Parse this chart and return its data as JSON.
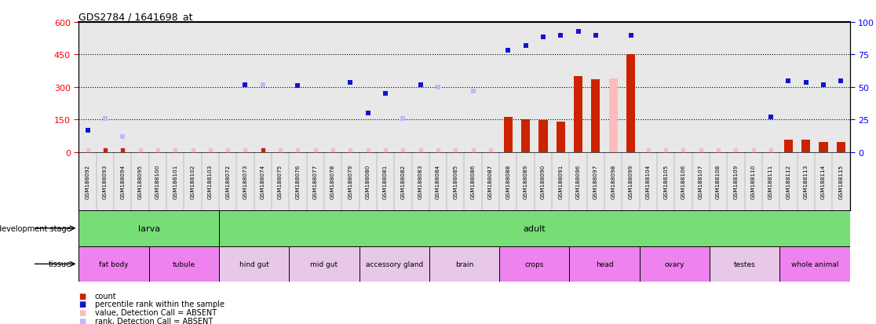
{
  "title": "GDS2784 / 1641698_at",
  "samples": [
    "GSM188092",
    "GSM188093",
    "GSM188094",
    "GSM188095",
    "GSM188100",
    "GSM188101",
    "GSM188102",
    "GSM188103",
    "GSM188072",
    "GSM188073",
    "GSM188074",
    "GSM188075",
    "GSM188076",
    "GSM188077",
    "GSM188078",
    "GSM188079",
    "GSM188080",
    "GSM188081",
    "GSM188082",
    "GSM188083",
    "GSM188084",
    "GSM188085",
    "GSM188086",
    "GSM188087",
    "GSM188088",
    "GSM188089",
    "GSM188090",
    "GSM188091",
    "GSM188096",
    "GSM188097",
    "GSM188098",
    "GSM188099",
    "GSM188104",
    "GSM188105",
    "GSM188106",
    "GSM188107",
    "GSM188108",
    "GSM188109",
    "GSM188110",
    "GSM188111",
    "GSM188112",
    "GSM188113",
    "GSM188114",
    "GSM188115"
  ],
  "count": [
    5,
    5,
    5,
    5,
    5,
    5,
    5,
    5,
    5,
    5,
    5,
    5,
    5,
    5,
    5,
    5,
    5,
    5,
    5,
    5,
    5,
    5,
    5,
    5,
    162,
    152,
    147,
    140,
    350,
    335,
    340,
    450,
    5,
    5,
    5,
    5,
    5,
    5,
    5,
    5,
    55,
    55,
    45,
    45
  ],
  "value_absent": [
    true,
    false,
    false,
    true,
    true,
    true,
    true,
    true,
    true,
    true,
    false,
    true,
    true,
    true,
    true,
    true,
    true,
    true,
    true,
    true,
    true,
    true,
    true,
    true,
    false,
    false,
    false,
    false,
    false,
    false,
    true,
    false,
    true,
    true,
    true,
    true,
    true,
    true,
    true,
    true,
    false,
    false,
    false,
    false
  ],
  "percentile": [
    100,
    155,
    70,
    0,
    0,
    0,
    0,
    0,
    0,
    310,
    310,
    0,
    305,
    0,
    0,
    320,
    180,
    270,
    155,
    310,
    300,
    0,
    282,
    0,
    470,
    490,
    530,
    540,
    555,
    540,
    0,
    540,
    0,
    0,
    0,
    0,
    0,
    0,
    0,
    160,
    330,
    320,
    310,
    330
  ],
  "rank_absent": [
    false,
    true,
    true,
    false,
    false,
    false,
    false,
    false,
    false,
    false,
    true,
    false,
    false,
    false,
    false,
    false,
    false,
    false,
    true,
    false,
    true,
    false,
    true,
    false,
    false,
    false,
    false,
    false,
    false,
    false,
    false,
    false,
    false,
    false,
    false,
    false,
    false,
    false,
    false,
    false,
    false,
    false,
    false,
    false
  ],
  "dev_groups": [
    {
      "label": "larva",
      "start": 0,
      "end": 8
    },
    {
      "label": "adult",
      "start": 8,
      "end": 44
    }
  ],
  "tissues": [
    {
      "label": "fat body",
      "start": 0,
      "end": 4,
      "color": "#EE82EE"
    },
    {
      "label": "tubule",
      "start": 4,
      "end": 8,
      "color": "#EE82EE"
    },
    {
      "label": "hind gut",
      "start": 8,
      "end": 12,
      "color": "#E8C8E8"
    },
    {
      "label": "mid gut",
      "start": 12,
      "end": 16,
      "color": "#E8C8E8"
    },
    {
      "label": "accessory gland",
      "start": 16,
      "end": 20,
      "color": "#E8C8E8"
    },
    {
      "label": "brain",
      "start": 20,
      "end": 24,
      "color": "#E8C8E8"
    },
    {
      "label": "crops",
      "start": 24,
      "end": 28,
      "color": "#EE82EE"
    },
    {
      "label": "head",
      "start": 28,
      "end": 32,
      "color": "#EE82EE"
    },
    {
      "label": "ovary",
      "start": 32,
      "end": 36,
      "color": "#EE82EE"
    },
    {
      "label": "testes",
      "start": 36,
      "end": 40,
      "color": "#E8C8E8"
    },
    {
      "label": "whole animal",
      "start": 40,
      "end": 44,
      "color": "#EE82EE"
    }
  ],
  "ylim_left": [
    0,
    600
  ],
  "yticks_left": [
    0,
    150,
    300,
    450,
    600
  ],
  "yticks_right": [
    0,
    25,
    50,
    75,
    100
  ],
  "bar_color": "#CC2200",
  "dot_color_present": "#1414CC",
  "dot_color_absent_value": "#FFBBBB",
  "dot_color_absent_rank": "#BBBBFF",
  "green_color": "#77DD77",
  "chart_bg": "#E8E8E8",
  "label_bg": "#D0D0D0"
}
